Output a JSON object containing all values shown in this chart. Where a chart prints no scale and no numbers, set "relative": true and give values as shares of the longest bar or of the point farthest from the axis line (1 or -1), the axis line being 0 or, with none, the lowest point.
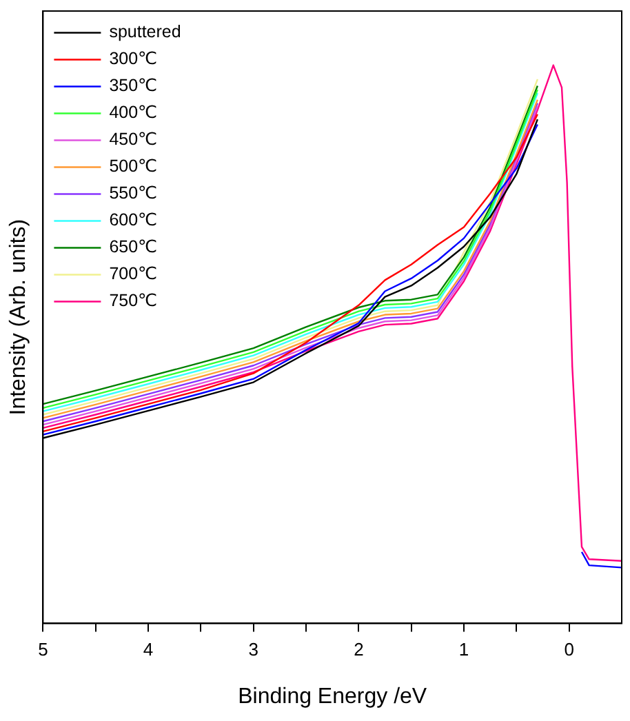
{
  "chart_data": {
    "type": "line",
    "xlabel": "Binding Energy /eV",
    "ylabel": "Intensity (Arb. units)",
    "relative": true,
    "legend": "top left",
    "grid": false,
    "marker": "none",
    "line_style": "solid",
    "xlim": [
      5,
      -0.5
    ],
    "xticks": [
      5,
      {
        "value": 4.5,
        "label": null
      },
      4,
      {
        "value": 3.5,
        "label": null
      },
      3,
      {
        "value": 2.5,
        "label": null
      },
      2,
      {
        "value": 1.5,
        "label": null
      },
      1,
      {
        "value": 0.5,
        "label": null
      },
      0
    ],
    "x": [
      5,
      4.5,
      4,
      3.5,
      3,
      2.5,
      2,
      1.75,
      1.5,
      1.25,
      1,
      0.75,
      0.5,
      0.3,
      0.15,
      0.07,
      0.02,
      -0.03,
      -0.12,
      -0.19,
      -0.5
    ],
    "series": [
      {
        "name": "sputtered",
        "color": "#000000",
        "values": [
          0.332,
          0.356,
          0.381,
          0.406,
          0.432,
          0.484,
          0.533,
          0.585,
          0.605,
          0.637,
          0.675,
          0.728,
          0.805,
          0.903,
          null,
          null,
          null,
          null,
          null,
          null,
          null
        ]
      },
      {
        "name": "300℃",
        "color": "#ff0000",
        "values": [
          0.344,
          0.368,
          0.393,
          0.418,
          0.448,
          0.503,
          0.57,
          0.615,
          0.643,
          0.678,
          0.71,
          0.77,
          0.835,
          0.912,
          null,
          null,
          null,
          null,
          null,
          null,
          null
        ]
      },
      {
        "name": "350℃",
        "color": "#0000ff",
        "values": [
          0.338,
          0.362,
          0.387,
          0.412,
          0.438,
          0.49,
          0.538,
          0.595,
          0.618,
          0.65,
          0.69,
          0.752,
          0.815,
          0.894,
          null,
          null,
          null,
          null,
          0.128,
          0.104,
          0.1
        ]
      },
      {
        "name": "400℃",
        "color": "#33ff33",
        "values": [
          0.386,
          0.41,
          0.435,
          0.46,
          0.486,
          0.524,
          0.559,
          0.571,
          0.573,
          0.582,
          0.649,
          0.739,
          0.859,
          0.956,
          null,
          null,
          null,
          null,
          null,
          null,
          null
        ]
      },
      {
        "name": "450℃",
        "color": "#e055e0",
        "values": [
          0.356,
          0.38,
          0.405,
          0.43,
          0.456,
          0.494,
          0.529,
          0.541,
          0.543,
          0.552,
          0.619,
          0.709,
          0.829,
          0.926,
          null,
          null,
          null,
          null,
          null,
          null,
          null
        ]
      },
      {
        "name": "500℃",
        "color": "#ff9933",
        "values": [
          0.368,
          0.392,
          0.417,
          0.442,
          0.468,
          0.506,
          0.541,
          0.553,
          0.555,
          0.564,
          0.631,
          0.721,
          0.841,
          0.938,
          null,
          null,
          null,
          null,
          null,
          null,
          null
        ]
      },
      {
        "name": "550℃",
        "color": "#8833ff",
        "values": [
          0.362,
          0.386,
          0.411,
          0.436,
          0.462,
          0.5,
          0.535,
          0.547,
          0.549,
          0.558,
          0.625,
          0.715,
          0.835,
          0.932,
          null,
          null,
          null,
          null,
          null,
          null,
          null
        ]
      },
      {
        "name": "600℃",
        "color": "#33ffff",
        "values": [
          0.38,
          0.404,
          0.429,
          0.454,
          0.48,
          0.518,
          0.553,
          0.565,
          0.567,
          0.576,
          0.643,
          0.733,
          0.853,
          0.95,
          null,
          null,
          null,
          null,
          null,
          null,
          null
        ]
      },
      {
        "name": "650℃",
        "color": "#008000",
        "values": [
          0.393,
          0.417,
          0.442,
          0.467,
          0.493,
          0.531,
          0.566,
          0.578,
          0.58,
          0.589,
          0.656,
          0.746,
          0.866,
          0.963,
          null,
          null,
          null,
          null,
          null,
          null,
          null
        ]
      },
      {
        "name": "700℃",
        "color": "#f0f090",
        "values": [
          0.374,
          0.398,
          0.423,
          0.448,
          0.474,
          0.512,
          0.547,
          0.559,
          0.561,
          0.57,
          0.665,
          0.755,
          0.875,
          0.975,
          null,
          null,
          null,
          null,
          null,
          null,
          null
        ]
      },
      {
        "name": "750℃",
        "color": "#ff0080",
        "values": [
          0.35,
          0.374,
          0.399,
          0.424,
          0.45,
          0.488,
          0.523,
          0.535,
          0.537,
          0.546,
          0.613,
          0.703,
          0.823,
          0.92,
          1.0,
          0.96,
          0.79,
          0.46,
          0.137,
          0.115,
          0.112
        ]
      }
    ]
  }
}
